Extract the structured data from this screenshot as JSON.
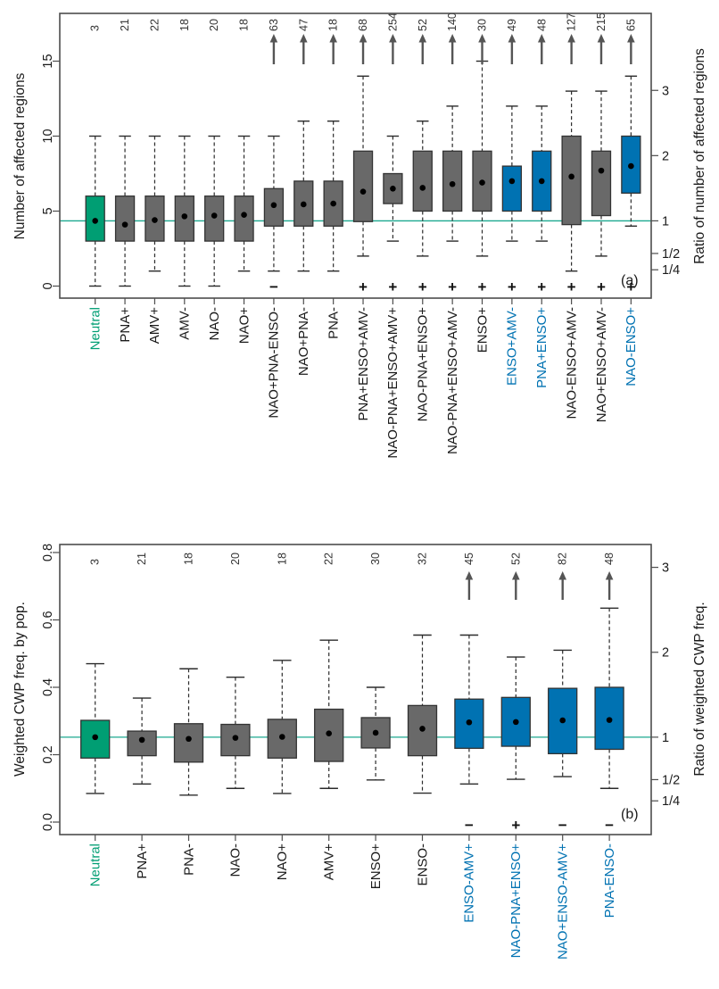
{
  "palette": {
    "green": "#009E73",
    "blue": "#0072B2",
    "gray": "#696969",
    "box_border": "#333333",
    "whisker": "#2b2b2b",
    "refline": "#1BA88F",
    "arrow": "#555555",
    "frame": "#4d4d4d",
    "ink": "#1a1a1a",
    "count_ink": "#333333"
  },
  "chart_data": [
    {
      "type": "boxplot",
      "panel_tag": "(a)",
      "ylabel_left": "Number of affected regions",
      "ylabel_right": "Ratio of number of affected regions",
      "ylim": [
        0,
        18.2
      ],
      "grid": false,
      "neutral_mean": 4.35,
      "yticks": [
        {
          "label": "0",
          "value": 0
        },
        {
          "label": "5",
          "value": 5
        },
        {
          "label": "10",
          "value": 10
        },
        {
          "label": "15",
          "value": 15
        }
      ],
      "ratio_ticks": [
        {
          "label": "3",
          "ratio": 3
        },
        {
          "label": "2",
          "ratio": 2
        },
        {
          "label": "1",
          "ratio": 1
        },
        {
          "label": "1/2",
          "ratio": 0.5
        },
        {
          "label": "1/4",
          "ratio": 0.25
        }
      ],
      "categories": [
        {
          "label": "Neutral",
          "n": "3",
          "color": "green",
          "lo": 0,
          "q1": 3,
          "mean": 4.35,
          "q3": 6,
          "hi": 10,
          "arrow": false,
          "sign": ""
        },
        {
          "label": "PNA+",
          "n": "21",
          "color": "gray",
          "lo": 0,
          "q1": 3,
          "mean": 4.1,
          "q3": 6,
          "hi": 10,
          "arrow": false,
          "sign": ""
        },
        {
          "label": "AMV+",
          "n": "22",
          "color": "gray",
          "lo": 1,
          "q1": 3,
          "mean": 4.4,
          "q3": 6,
          "hi": 10,
          "arrow": false,
          "sign": ""
        },
        {
          "label": "AMV-",
          "n": "18",
          "color": "gray",
          "lo": 0,
          "q1": 3,
          "mean": 4.65,
          "q3": 6,
          "hi": 10,
          "arrow": false,
          "sign": ""
        },
        {
          "label": "NAO-",
          "n": "20",
          "color": "gray",
          "lo": 0,
          "q1": 3,
          "mean": 4.7,
          "q3": 6,
          "hi": 10,
          "arrow": false,
          "sign": ""
        },
        {
          "label": "NAO+",
          "n": "18",
          "color": "gray",
          "lo": 1,
          "q1": 3,
          "mean": 4.75,
          "q3": 6,
          "hi": 10,
          "arrow": false,
          "sign": ""
        },
        {
          "label": "NAO+PNA-ENSO-",
          "n": "63",
          "color": "gray",
          "lo": 1,
          "q1": 4,
          "mean": 5.4,
          "q3": 6.5,
          "hi": 10,
          "arrow": true,
          "sign": "−"
        },
        {
          "label": "NAO+PNA-",
          "n": "47",
          "color": "gray",
          "lo": 1,
          "q1": 4,
          "mean": 5.45,
          "q3": 7,
          "hi": 11,
          "arrow": true,
          "sign": ""
        },
        {
          "label": "PNA-",
          "n": "18",
          "color": "gray",
          "lo": 1,
          "q1": 4,
          "mean": 5.5,
          "q3": 7,
          "hi": 11,
          "arrow": true,
          "sign": ""
        },
        {
          "label": "PNA+ENSO+AMV-",
          "n": "68",
          "color": "gray",
          "lo": 2,
          "q1": 4.3,
          "mean": 6.3,
          "q3": 9,
          "hi": 14,
          "arrow": true,
          "sign": "+"
        },
        {
          "label": "NAO-PNA+ENSO+AMV+",
          "n": "254",
          "color": "gray",
          "lo": 3,
          "q1": 5.5,
          "mean": 6.5,
          "q3": 7.5,
          "hi": 10,
          "arrow": true,
          "sign": "+"
        },
        {
          "label": "NAO-PNA+ENSO+",
          "n": "52",
          "color": "gray",
          "lo": 2,
          "q1": 5,
          "mean": 6.55,
          "q3": 9,
          "hi": 11,
          "arrow": true,
          "sign": "+"
        },
        {
          "label": "NAO-PNA+ENSO+AMV-",
          "n": "140",
          "color": "gray",
          "lo": 3,
          "q1": 5,
          "mean": 6.8,
          "q3": 9,
          "hi": 12,
          "arrow": true,
          "sign": "+"
        },
        {
          "label": "ENSO+",
          "n": "30",
          "color": "gray",
          "lo": 2,
          "q1": 5,
          "mean": 6.9,
          "q3": 9,
          "hi": 15,
          "arrow": true,
          "sign": "+"
        },
        {
          "label": "ENSO+AMV-",
          "n": "49",
          "color": "blue",
          "lo": 3,
          "q1": 5,
          "mean": 7.0,
          "q3": 8,
          "hi": 12,
          "arrow": true,
          "sign": "+"
        },
        {
          "label": "PNA+ENSO+",
          "n": "48",
          "color": "blue",
          "lo": 3,
          "q1": 5,
          "mean": 7.0,
          "q3": 9,
          "hi": 12,
          "arrow": true,
          "sign": "+"
        },
        {
          "label": "NAO-ENSO+AMV-",
          "n": "127",
          "color": "gray",
          "lo": 1,
          "q1": 4.1,
          "mean": 7.3,
          "q3": 10,
          "hi": 13,
          "arrow": true,
          "sign": "+"
        },
        {
          "label": "NAO+ENSO+AMV-",
          "n": "215",
          "color": "gray",
          "lo": 2,
          "q1": 4.7,
          "mean": 7.7,
          "q3": 9,
          "hi": 13,
          "arrow": true,
          "sign": "+"
        },
        {
          "label": "NAO-ENSO+",
          "n": "65",
          "color": "blue",
          "lo": 4,
          "q1": 6.2,
          "mean": 8.0,
          "q3": 10,
          "hi": 14,
          "arrow": true,
          "sign": "+"
        }
      ]
    },
    {
      "type": "boxplot",
      "panel_tag": "(b)",
      "ylabel_left": "Weighted CWP freq. by pop.",
      "ylabel_right": "Ratio of weighted CWP freq.",
      "ylim": [
        0,
        0.824
      ],
      "grid": false,
      "neutral_mean": 0.252,
      "yticks": [
        {
          "label": "0.0",
          "value": 0
        },
        {
          "label": "0.2",
          "value": 0.2
        },
        {
          "label": "0.4",
          "value": 0.4
        },
        {
          "label": "0.6",
          "value": 0.6
        },
        {
          "label": "0.8",
          "value": 0.8
        }
      ],
      "ratio_ticks": [
        {
          "label": "3",
          "ratio": 3
        },
        {
          "label": "2",
          "ratio": 2
        },
        {
          "label": "1",
          "ratio": 1
        },
        {
          "label": "1/2",
          "ratio": 0.5
        },
        {
          "label": "1/4",
          "ratio": 0.25
        }
      ],
      "categories": [
        {
          "label": "Neutral",
          "n": "3",
          "color": "green",
          "lo": 0.085,
          "q1": 0.19,
          "mean": 0.252,
          "q3": 0.302,
          "hi": 0.47,
          "arrow": false,
          "sign": ""
        },
        {
          "label": "PNA+",
          "n": "21",
          "color": "gray",
          "lo": 0.113,
          "q1": 0.197,
          "mean": 0.244,
          "q3": 0.27,
          "hi": 0.368,
          "arrow": false,
          "sign": ""
        },
        {
          "label": "PNA-",
          "n": "18",
          "color": "gray",
          "lo": 0.08,
          "q1": 0.178,
          "mean": 0.247,
          "q3": 0.292,
          "hi": 0.455,
          "arrow": false,
          "sign": ""
        },
        {
          "label": "NAO-",
          "n": "20",
          "color": "gray",
          "lo": 0.1,
          "q1": 0.197,
          "mean": 0.25,
          "q3": 0.29,
          "hi": 0.43,
          "arrow": false,
          "sign": ""
        },
        {
          "label": "NAO+",
          "n": "18",
          "color": "gray",
          "lo": 0.085,
          "q1": 0.19,
          "mean": 0.253,
          "q3": 0.305,
          "hi": 0.48,
          "arrow": false,
          "sign": ""
        },
        {
          "label": "AMV+",
          "n": "22",
          "color": "gray",
          "lo": 0.1,
          "q1": 0.18,
          "mean": 0.263,
          "q3": 0.335,
          "hi": 0.54,
          "arrow": false,
          "sign": ""
        },
        {
          "label": "ENSO+",
          "n": "30",
          "color": "gray",
          "lo": 0.125,
          "q1": 0.22,
          "mean": 0.265,
          "q3": 0.31,
          "hi": 0.4,
          "arrow": false,
          "sign": ""
        },
        {
          "label": "ENSO-",
          "n": "32",
          "color": "gray",
          "lo": 0.086,
          "q1": 0.197,
          "mean": 0.277,
          "q3": 0.346,
          "hi": 0.555,
          "arrow": false,
          "sign": ""
        },
        {
          "label": "ENSO-AMV+",
          "n": "45",
          "color": "blue",
          "lo": 0.113,
          "q1": 0.219,
          "mean": 0.296,
          "q3": 0.365,
          "hi": 0.555,
          "arrow": true,
          "sign": "−"
        },
        {
          "label": "NAO-PNA+ENSO+",
          "n": "52",
          "color": "blue",
          "lo": 0.127,
          "q1": 0.225,
          "mean": 0.297,
          "q3": 0.37,
          "hi": 0.49,
          "arrow": true,
          "sign": "+"
        },
        {
          "label": "NAO+ENSO-AMV+",
          "n": "82",
          "color": "blue",
          "lo": 0.135,
          "q1": 0.203,
          "mean": 0.302,
          "q3": 0.397,
          "hi": 0.51,
          "arrow": true,
          "sign": "−"
        },
        {
          "label": "PNA-ENSO-",
          "n": "48",
          "color": "blue",
          "lo": 0.1,
          "q1": 0.216,
          "mean": 0.303,
          "q3": 0.4,
          "hi": 0.635,
          "arrow": true,
          "sign": "−"
        }
      ]
    }
  ]
}
